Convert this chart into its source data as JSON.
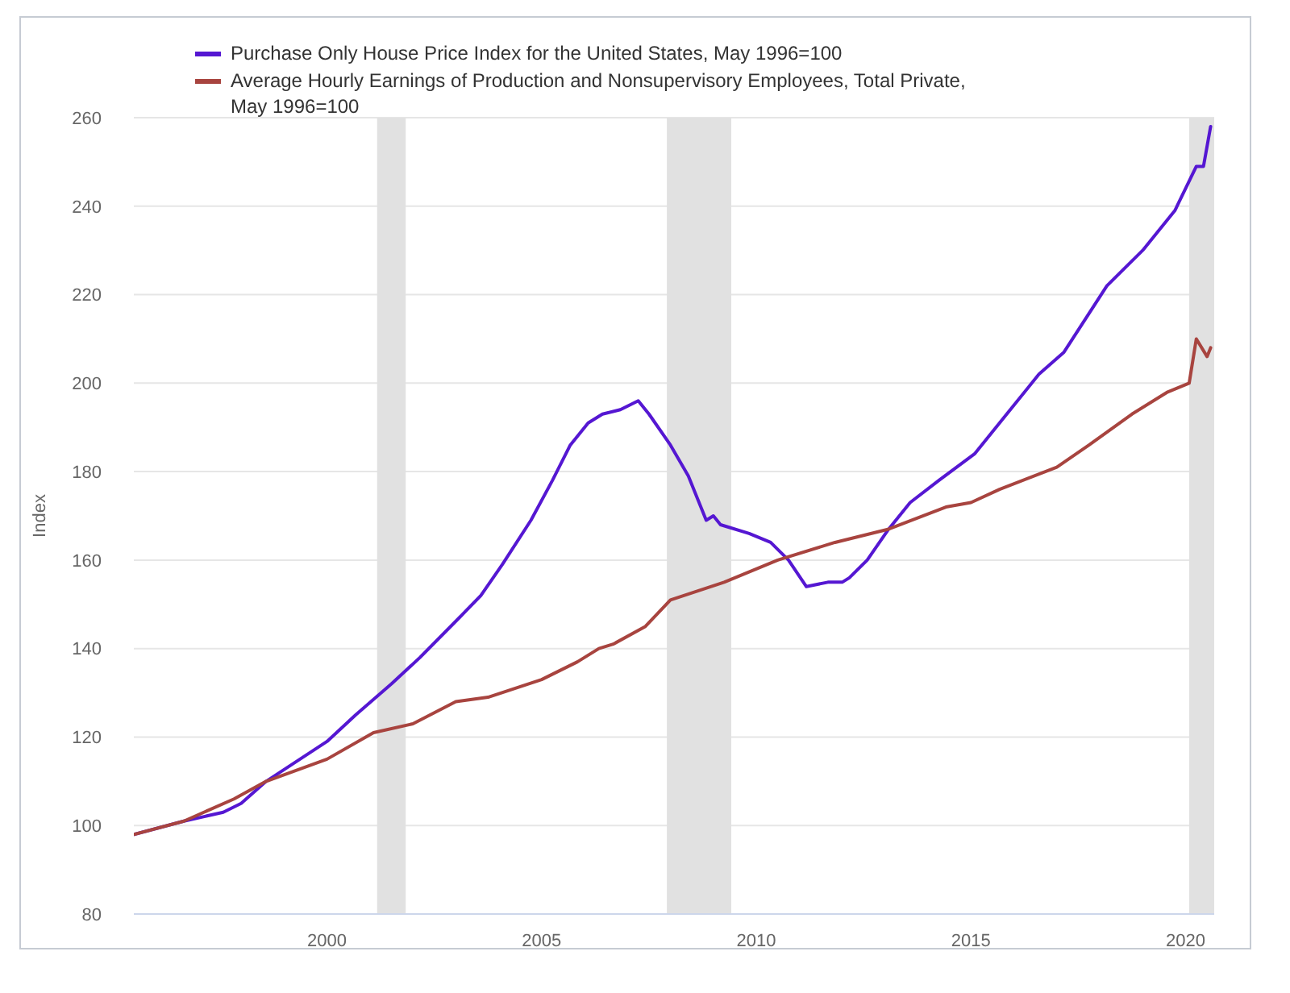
{
  "chart_data": {
    "type": "line",
    "ylabel": "Index",
    "xlim": [
      "1995-07",
      "2020-09"
    ],
    "xticks": [
      "2000",
      "2005",
      "2010",
      "2015",
      "2020"
    ],
    "ylim": [
      80,
      260
    ],
    "yticks": [
      80,
      100,
      120,
      140,
      160,
      180,
      200,
      220,
      240,
      260
    ],
    "grid": "y",
    "legend": "top left",
    "bands": [
      {
        "axis": "x",
        "from": "2001-03",
        "to": "2001-11",
        "color": "#e1e1e1"
      },
      {
        "axis": "x",
        "from": "2007-12",
        "to": "2009-06",
        "color": "#e1e1e1"
      },
      {
        "axis": "x",
        "from": "2020-02",
        "to": "2020-09",
        "color": "#e1e1e1"
      }
    ],
    "series": [
      {
        "name": "Purchase Only House Price Index for the United States, May 1996=100",
        "color": "#5517d2",
        "x": [
          "1995-07",
          "1996-09",
          "1997-08",
          "1998-01",
          "1998-08",
          "2000-01",
          "2000-09",
          "2001-07",
          "2002-03",
          "2003-02",
          "2003-08",
          "2004-02",
          "2004-10",
          "2005-04",
          "2005-09",
          "2006-02",
          "2006-06",
          "2006-11",
          "2007-04",
          "2007-07",
          "2008-01",
          "2008-06",
          "2008-11",
          "2009-01",
          "2009-03",
          "2009-11",
          "2010-05",
          "2010-10",
          "2011-03",
          "2011-09",
          "2012-01",
          "2012-03",
          "2012-08",
          "2013-02",
          "2013-08",
          "2014-04",
          "2015-02",
          "2015-11",
          "2016-08",
          "2017-03",
          "2018-03",
          "2019-01",
          "2019-10",
          "2020-04",
          "2020-06",
          "2020-08"
        ],
        "values": [
          98,
          101,
          103,
          105,
          110,
          119,
          125,
          132,
          138,
          147,
          152,
          159,
          169,
          178,
          186,
          191,
          193,
          194,
          196,
          193,
          186,
          179,
          169,
          170,
          168,
          166,
          164,
          160,
          154,
          155,
          155,
          156,
          160,
          167,
          173,
          178,
          184,
          193,
          202,
          207,
          222,
          230,
          239,
          249,
          249,
          258
        ]
      },
      {
        "name": "Average Hourly Earnings of Production and Nonsupervisory Employees, Total Private, May 1996=100",
        "color": "#a8443f",
        "x": [
          "1995-07",
          "1996-09",
          "1997-11",
          "1998-08",
          "2000-01",
          "2001-02",
          "2002-01",
          "2003-01",
          "2003-10",
          "2005-01",
          "2005-11",
          "2006-05",
          "2006-09",
          "2007-06",
          "2008-01",
          "2009-04",
          "2010-07",
          "2011-11",
          "2013-02",
          "2014-06",
          "2015-01",
          "2015-09",
          "2017-01",
          "2017-10",
          "2018-10",
          "2019-08",
          "2020-02",
          "2020-04",
          "2020-07",
          "2020-08"
        ],
        "values": [
          98,
          101,
          106,
          110,
          115,
          121,
          123,
          128,
          129,
          133,
          137,
          140,
          141,
          145,
          151,
          155,
          160,
          164,
          167,
          172,
          173,
          176,
          181,
          186,
          193,
          198,
          200,
          210,
          206,
          208
        ]
      }
    ]
  }
}
